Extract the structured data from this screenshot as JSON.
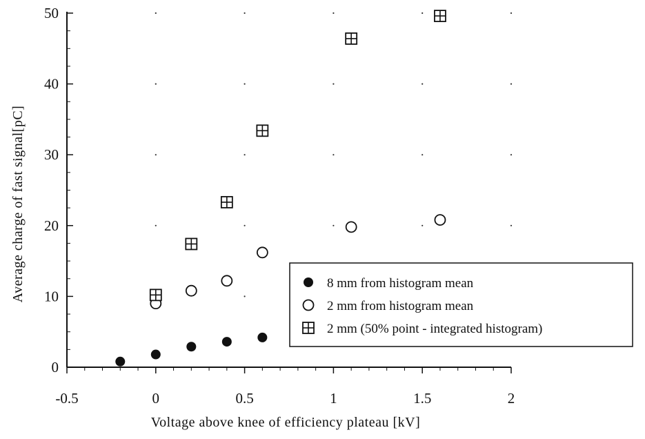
{
  "chart_data": {
    "type": "scatter",
    "xlabel": "Voltage above knee of efficiency plateau [kV]",
    "ylabel": "Average charge of fast signal[pC]",
    "xlim": [
      -0.5,
      2
    ],
    "ylim": [
      0,
      50
    ],
    "x_ticks": [
      -0.5,
      0,
      0.5,
      1,
      1.5,
      2
    ],
    "x_tick_labels": [
      "-0.5",
      "0",
      "0.5",
      "1",
      "1.5",
      "2"
    ],
    "y_ticks": [
      0,
      10,
      20,
      30,
      40,
      50
    ],
    "y_tick_labels": [
      "0",
      "10",
      "20",
      "30",
      "40",
      "50"
    ],
    "grid": "dotted",
    "legend_position": "bottom-right",
    "series": [
      {
        "name": "8 mm from histogram mean",
        "marker": "filled-circle",
        "points": [
          {
            "x": -0.2,
            "y": 0.8
          },
          {
            "x": 0.0,
            "y": 1.8
          },
          {
            "x": 0.2,
            "y": 2.9
          },
          {
            "x": 0.4,
            "y": 3.6
          },
          {
            "x": 0.6,
            "y": 4.2
          }
        ]
      },
      {
        "name": "2 mm from histogram mean",
        "marker": "open-circle",
        "points": [
          {
            "x": 0.0,
            "y": 9.0
          },
          {
            "x": 0.2,
            "y": 10.8
          },
          {
            "x": 0.4,
            "y": 12.2
          },
          {
            "x": 0.6,
            "y": 16.2
          },
          {
            "x": 1.1,
            "y": 19.8
          },
          {
            "x": 1.6,
            "y": 20.8
          }
        ]
      },
      {
        "name": "2 mm (50% point - integrated histogram)",
        "marker": "boxed-plus",
        "points": [
          {
            "x": 0.0,
            "y": 10.2
          },
          {
            "x": 0.2,
            "y": 17.4
          },
          {
            "x": 0.4,
            "y": 23.3
          },
          {
            "x": 0.6,
            "y": 33.4
          },
          {
            "x": 1.1,
            "y": 46.4
          },
          {
            "x": 1.6,
            "y": 49.6
          }
        ]
      }
    ]
  }
}
